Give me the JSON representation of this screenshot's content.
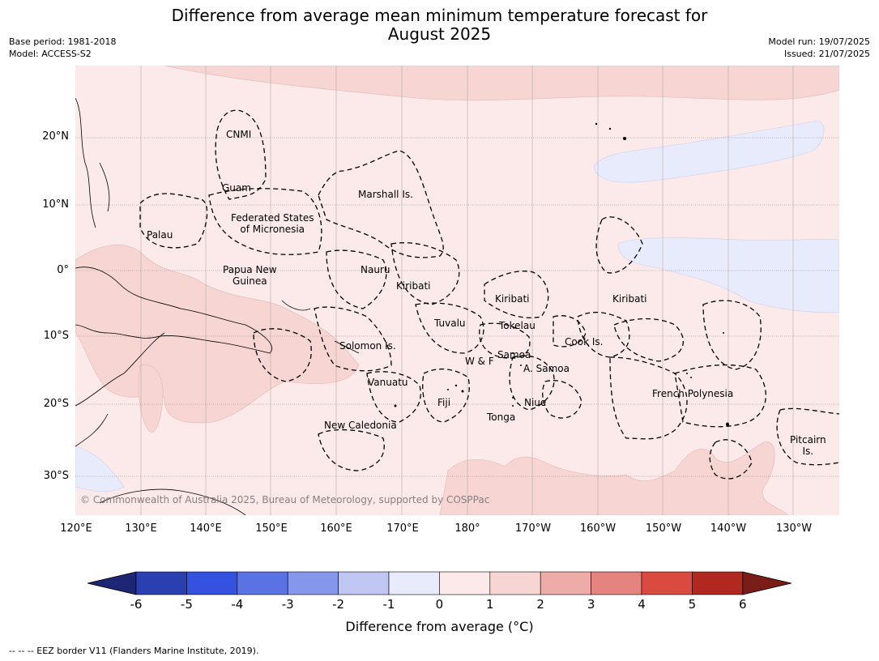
{
  "title_line1": "Difference from average mean minimum temperature forecast for",
  "title_line2": "August 2025",
  "meta_left": [
    "Base period: 1981-2018",
    "Model: ACCESS-S2"
  ],
  "meta_right": [
    "Model run: 19/07/2025",
    "Issued: 21/07/2025"
  ],
  "lat_labels": [
    "20°N",
    "10°N",
    "0°",
    "10°S",
    "20°S",
    "30°S"
  ],
  "lon_labels": [
    "120°E",
    "130°E",
    "140°E",
    "150°E",
    "160°E",
    "170°E",
    "180°",
    "170°W",
    "160°W",
    "150°W",
    "140°W",
    "130°W"
  ],
  "places": {
    "cnmi": "CNMI",
    "guam": "Guam",
    "marshall": "Marshall Is.",
    "fsm_1": "Federated States",
    "fsm_2": "of Micronesia",
    "palau": "Palau",
    "png_1": "Papua New",
    "png_2": "Guinea",
    "nauru": "Nauru",
    "kiribati_w": "Kiribati",
    "kiribati_c": "Kiribati",
    "kiribati_e": "Kiribati",
    "tuvalu": "Tuvalu",
    "tokelau": "Tokelau",
    "cook": "Cook Is.",
    "solomon": "Solomon Is.",
    "samoa": "Samoa",
    "wf": "W & F",
    "asamoa": "A. Samoa",
    "vanuatu": "Vanuatu",
    "fiji": "Fiji",
    "niue": "Niue",
    "tonga": "Tonga",
    "frenchpoly": "French Polynesia",
    "newcal": "New Caledonia",
    "pitcairn_1": "Pitcairn",
    "pitcairn_2": "Is."
  },
  "copyright": "© Commonwealth of Australia 2025, Bureau of Meteorology, supported by COSPPac",
  "colorbar": {
    "ticks": [
      "-6",
      "-5",
      "-4",
      "-3",
      "-2",
      "-1",
      "0",
      "1",
      "2",
      "3",
      "4",
      "5",
      "6"
    ],
    "colors": [
      "#2a3fb0",
      "#3451e0",
      "#5a72e4",
      "#8597ea",
      "#bfc7f2",
      "#e8ebfb",
      "#fbeae9",
      "#f6d5d3",
      "#eeaca8",
      "#e5837f",
      "#da4a40",
      "#b0281f"
    ],
    "under_color": "#1c2673",
    "over_color": "#7a1c17",
    "label": "Difference from average (°C)"
  },
  "footer": "--  --  -- EEZ border V11 (Flanders Marine Institute, 2019)."
}
